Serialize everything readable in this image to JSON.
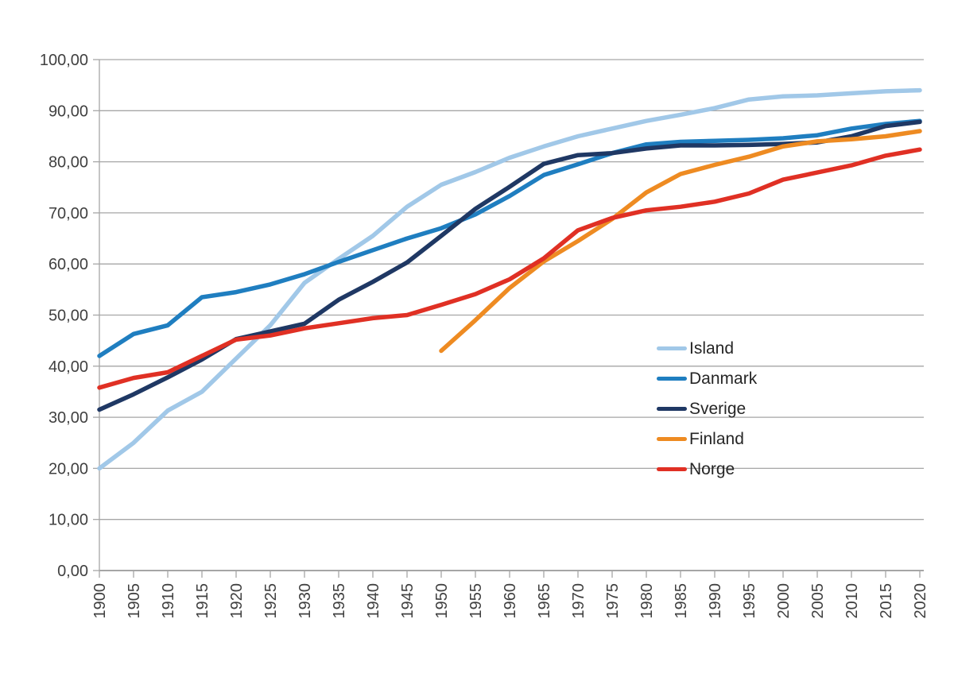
{
  "chart_data": {
    "type": "line",
    "title": "",
    "xlabel": "",
    "ylabel": "",
    "xlim": [
      1900,
      2020
    ],
    "ylim": [
      0,
      100
    ],
    "grid": "horizontal",
    "legend_position": "middle-right",
    "x_tick_labels": [
      "1900",
      "1905",
      "1910",
      "1915",
      "1920",
      "1925",
      "1930",
      "1935",
      "1940",
      "1945",
      "1950",
      "1955",
      "1960",
      "1965",
      "1970",
      "1975",
      "1980",
      "1985",
      "1990",
      "1995",
      "2000",
      "2005",
      "2010",
      "2015",
      "2020"
    ],
    "y_tick_labels": [
      "0,00",
      "10,00",
      "20,00",
      "30,00",
      "40,00",
      "50,00",
      "60,00",
      "70,00",
      "80,00",
      "90,00",
      "100,00"
    ],
    "y_tick_values": [
      0,
      10,
      20,
      30,
      40,
      50,
      60,
      70,
      80,
      90,
      100
    ],
    "x": [
      1900,
      1905,
      1910,
      1915,
      1920,
      1925,
      1930,
      1935,
      1940,
      1945,
      1950,
      1955,
      1960,
      1965,
      1970,
      1975,
      1980,
      1985,
      1990,
      1995,
      2000,
      2005,
      2010,
      2015,
      2020
    ],
    "series": [
      {
        "name": "Island",
        "color": "#A1C8E8",
        "values": [
          20.0,
          25.0,
          31.3,
          35.0,
          41.5,
          48.0,
          56.3,
          61.0,
          65.5,
          71.2,
          75.5,
          78.0,
          80.8,
          83.0,
          85.0,
          86.5,
          88.0,
          89.2,
          90.5,
          92.2,
          92.8,
          93.0,
          93.4,
          93.8,
          94.0
        ]
      },
      {
        "name": "Danmark",
        "color": "#1F7EC0",
        "values": [
          42.0,
          46.3,
          48.0,
          53.5,
          54.5,
          56.0,
          58.0,
          60.4,
          62.7,
          65.0,
          67.0,
          69.7,
          73.3,
          77.4,
          79.5,
          81.7,
          83.4,
          83.9,
          84.1,
          84.3,
          84.6,
          85.2,
          86.5,
          87.4,
          88.0
        ]
      },
      {
        "name": "Sverige",
        "color": "#1F3864",
        "values": [
          31.5,
          34.5,
          37.8,
          41.3,
          45.3,
          46.8,
          48.3,
          53.0,
          56.5,
          60.3,
          65.5,
          70.8,
          75.1,
          79.6,
          81.3,
          81.7,
          82.6,
          83.2,
          83.2,
          83.3,
          83.5,
          83.8,
          85.0,
          87.0,
          87.8
        ]
      },
      {
        "name": "Finland",
        "color": "#EE8B22",
        "values": [
          null,
          null,
          null,
          null,
          null,
          null,
          null,
          null,
          null,
          null,
          43.0,
          49.0,
          55.3,
          60.5,
          64.5,
          68.8,
          74.0,
          77.6,
          79.4,
          81.0,
          83.0,
          84.0,
          84.4,
          85.0,
          86.0
        ]
      },
      {
        "name": "Norge",
        "color": "#E03024",
        "values": [
          35.8,
          37.7,
          38.8,
          42.0,
          45.2,
          46.0,
          47.4,
          48.4,
          49.4,
          50.0,
          52.0,
          54.1,
          57.0,
          61.1,
          66.6,
          69.0,
          70.5,
          71.2,
          72.2,
          73.8,
          76.5,
          77.9,
          79.3,
          81.2,
          82.4
        ]
      }
    ],
    "colors": {
      "gridline": "#A6A6A6",
      "axis": "#A6A6A6",
      "tick_label": "#404040",
      "legend_text": "#262626",
      "background": "#FFFFFF"
    }
  }
}
